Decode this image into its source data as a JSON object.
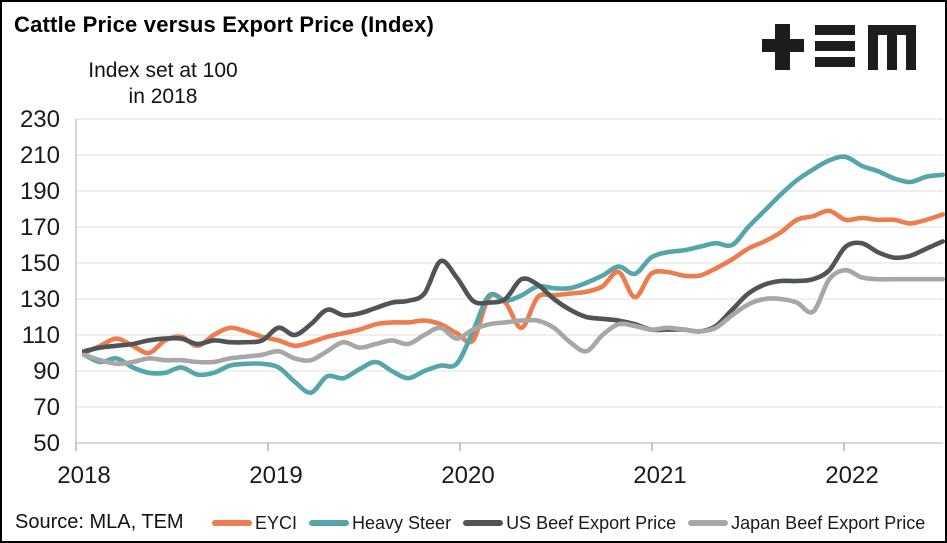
{
  "header": {
    "title": "Cattle Price versus Export Price (Index)",
    "subtitle_line1": "Index set at 100",
    "subtitle_line2": "in 2018"
  },
  "logo": {
    "name": "TEM logo",
    "color": "#1d1d1b"
  },
  "source": {
    "label": "Source: MLA, TEM"
  },
  "colors": {
    "background": "#ffffff",
    "border": "#000000",
    "gridline": "#e7e5df",
    "axis": "#c2c0ba",
    "tick": "#a8a6a0",
    "text": "#1a1a1a",
    "eyci": "#ed7d4e",
    "heavy_steer": "#54a6ab",
    "us_beef": "#4e5457",
    "japan_beef": "#a7a7a7"
  },
  "chart_data": {
    "type": "line",
    "title": "Cattle Price versus Export Price (Index)",
    "subtitle": "Index set at 100 in 2018",
    "xlabel": "",
    "ylabel": "",
    "ylim": [
      50,
      230
    ],
    "yticks": [
      50,
      70,
      90,
      110,
      130,
      150,
      170,
      190,
      210,
      230
    ],
    "year_ticks": [
      "2018",
      "2019",
      "2020",
      "2021",
      "2022"
    ],
    "grid": "horizontal",
    "legend_position": "bottom",
    "x": [
      "2018-01",
      "2018-02",
      "2018-03",
      "2018-04",
      "2018-05",
      "2018-06",
      "2018-07",
      "2018-08",
      "2018-09",
      "2018-10",
      "2018-11",
      "2018-12",
      "2019-01",
      "2019-02",
      "2019-03",
      "2019-04",
      "2019-05",
      "2019-06",
      "2019-07",
      "2019-08",
      "2019-09",
      "2019-10",
      "2019-11",
      "2019-12",
      "2020-01",
      "2020-02",
      "2020-03",
      "2020-04",
      "2020-05",
      "2020-06",
      "2020-07",
      "2020-08",
      "2020-09",
      "2020-10",
      "2020-11",
      "2020-12",
      "2021-01",
      "2021-02",
      "2021-03",
      "2021-04",
      "2021-05",
      "2021-06",
      "2021-07",
      "2021-08",
      "2021-09",
      "2021-10",
      "2021-11",
      "2021-12",
      "2022-01",
      "2022-02",
      "2022-03",
      "2022-04",
      "2022-05",
      "2022-06"
    ],
    "series": [
      {
        "name": "EYCI",
        "color": "#ed7d4e",
        "values": [
          100,
          104,
          108,
          104,
          100,
          107,
          109,
          104,
          110,
          114,
          112,
          109,
          107,
          104,
          106,
          109,
          111,
          113,
          116,
          117,
          117,
          118,
          116,
          111,
          107,
          131,
          128,
          114,
          131,
          132,
          133,
          134,
          137,
          145,
          131,
          144,
          145,
          143,
          143,
          147,
          152,
          158,
          162,
          167,
          174,
          176,
          179,
          174,
          175,
          174,
          174,
          172,
          174,
          177
        ]
      },
      {
        "name": "Heavy Steer",
        "color": "#54a6ab",
        "values": [
          99,
          95,
          97,
          92,
          89,
          89,
          92,
          88,
          89,
          93,
          94,
          94,
          92,
          84,
          78,
          87,
          86,
          91,
          95,
          90,
          86,
          90,
          93,
          94,
          112,
          132,
          129,
          132,
          137,
          136,
          136,
          139,
          143,
          148,
          144,
          153,
          156,
          157,
          159,
          161,
          160,
          170,
          179,
          188,
          196,
          202,
          207,
          209,
          204,
          201,
          197,
          195,
          198,
          199
        ]
      },
      {
        "name": "US Beef Export Price",
        "color": "#4e5457",
        "values": [
          101,
          103,
          104,
          105,
          107,
          108,
          108,
          105,
          107,
          106,
          106,
          107,
          114,
          110,
          116,
          124,
          121,
          122,
          125,
          128,
          129,
          133,
          151,
          142,
          129,
          128,
          130,
          141,
          138,
          130,
          124,
          120,
          119,
          118,
          116,
          113,
          113,
          113,
          112,
          115,
          124,
          133,
          138,
          140,
          140,
          141,
          146,
          159,
          161,
          156,
          153,
          154,
          158,
          162
        ]
      },
      {
        "name": "Japan Beef Export Price",
        "color": "#a7a7a7",
        "values": [
          99,
          96,
          94,
          95,
          97,
          96,
          96,
          95,
          95,
          97,
          98,
          99,
          101,
          97,
          96,
          101,
          106,
          103,
          105,
          107,
          105,
          110,
          114,
          108,
          113,
          116,
          117,
          118,
          118,
          114,
          106,
          101,
          110,
          116,
          115,
          113,
          114,
          113,
          112,
          114,
          121,
          127,
          130,
          130,
          128,
          123,
          141,
          146,
          142,
          141,
          141,
          141,
          141,
          141
        ]
      }
    ]
  }
}
